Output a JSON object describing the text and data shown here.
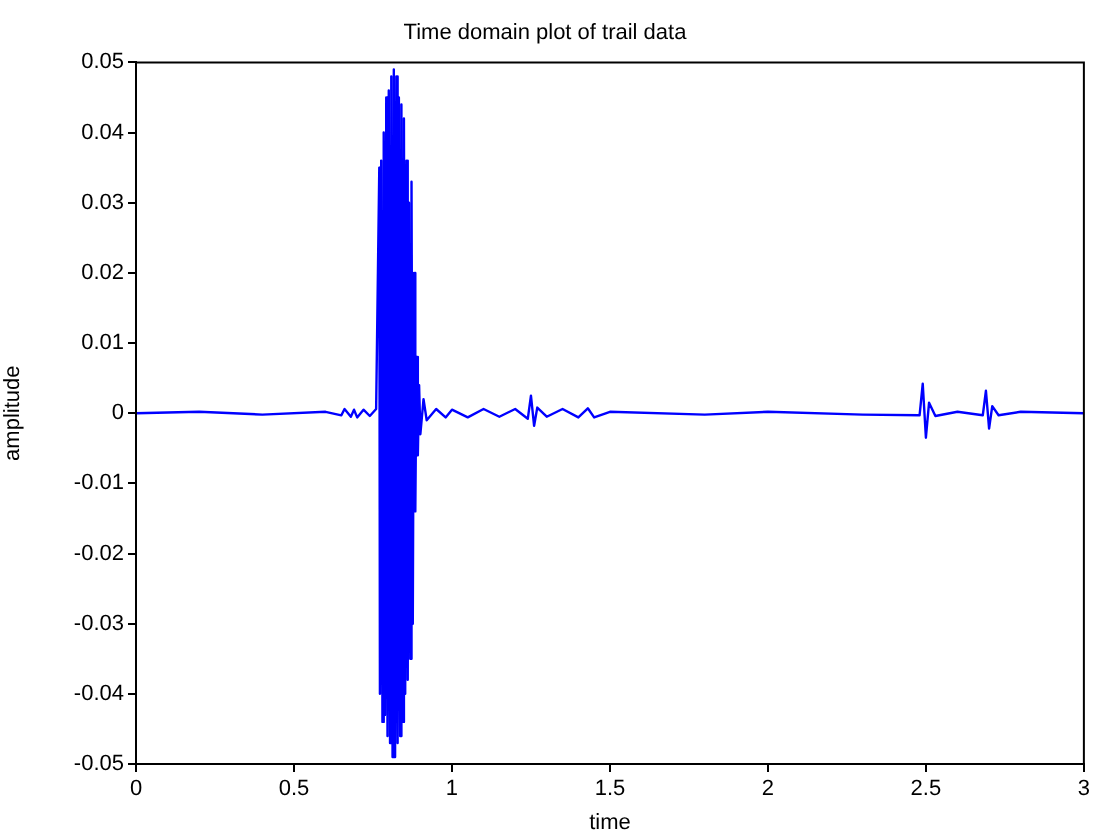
{
  "chart_data": {
    "type": "line",
    "title": "Time domain plot of trail data",
    "xlabel": "time",
    "ylabel": "amplitude",
    "xlim": [
      0,
      3
    ],
    "xticks": [
      0,
      0.5,
      1,
      1.5,
      2,
      2.5,
      3
    ],
    "ylim": [
      -0.05,
      0.05
    ],
    "yticks": [
      -0.05,
      -0.04,
      -0.03,
      -0.02,
      -0.01,
      0,
      0.01,
      0.02,
      0.03,
      0.04,
      0.05
    ],
    "grid": false,
    "legend": false,
    "marker": "none",
    "line_style": "solid",
    "series": [
      {
        "color": "#0000ff",
        "x": [
          0,
          0.2,
          0.4,
          0.6,
          0.65,
          0.66,
          0.68,
          0.69,
          0.7,
          0.72,
          0.74,
          0.76,
          0.77,
          0.772,
          0.776,
          0.78,
          0.784,
          0.788,
          0.792,
          0.796,
          0.8,
          0.804,
          0.808,
          0.812,
          0.816,
          0.82,
          0.824,
          0.828,
          0.832,
          0.836,
          0.84,
          0.844,
          0.848,
          0.852,
          0.856,
          0.86,
          0.864,
          0.868,
          0.872,
          0.876,
          0.88,
          0.884,
          0.888,
          0.892,
          0.896,
          0.9,
          0.91,
          0.92,
          0.95,
          0.98,
          1.0,
          1.05,
          1.1,
          1.15,
          1.2,
          1.24,
          1.25,
          1.26,
          1.27,
          1.3,
          1.35,
          1.4,
          1.43,
          1.45,
          1.5,
          1.8,
          2.0,
          2.3,
          2.48,
          2.49,
          2.5,
          2.51,
          2.53,
          2.6,
          2.68,
          2.69,
          2.7,
          2.71,
          2.73,
          2.8,
          3.0
        ],
        "values": [
          0,
          0.0002,
          -0.0002,
          0.0002,
          -0.0003,
          0.0006,
          -0.0005,
          0.0005,
          -0.0006,
          0.0005,
          -0.0004,
          0.0006,
          0.035,
          -0.04,
          0.036,
          -0.044,
          0.04,
          -0.043,
          0.045,
          -0.046,
          0.046,
          -0.047,
          0.048,
          -0.049,
          0.049,
          -0.049,
          0.048,
          -0.047,
          0.045,
          -0.046,
          0.044,
          -0.044,
          0.042,
          -0.04,
          0.036,
          -0.038,
          0.03,
          -0.035,
          0.033,
          -0.03,
          0.02,
          -0.014,
          0.008,
          -0.006,
          0.004,
          -0.003,
          0.002,
          -0.001,
          0.0006,
          -0.0006,
          0.0005,
          -0.0006,
          0.0006,
          -0.0005,
          0.0006,
          -0.0008,
          0.0025,
          -0.0018,
          0.0008,
          -0.0005,
          0.0006,
          -0.0006,
          0.0007,
          -0.0006,
          0.0002,
          -0.0002,
          0.0002,
          -0.0002,
          -0.0003,
          0.0042,
          -0.0035,
          0.0015,
          -0.0004,
          0.0002,
          -0.0003,
          0.0032,
          -0.0022,
          0.001,
          -0.0003,
          0.0002,
          0
        ]
      }
    ]
  }
}
